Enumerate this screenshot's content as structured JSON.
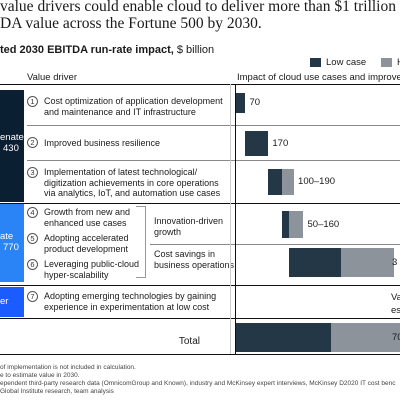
{
  "header": {
    "title_line1": "value drivers could enable cloud to deliver more than $1 trillion in 203",
    "title_line2": "DA value across the Fortune 500 by 2030.",
    "subtitle_bold": "ted 2030 EBITDA run-rate impact,",
    "subtitle_unit": " $ billion"
  },
  "legend": {
    "low_label": "Low case",
    "high_label": "H"
  },
  "colors": {
    "low": "#243746",
    "high": "#8c939a",
    "rejuvenate": "#0b1f33",
    "innovate": "#2a84f5",
    "pioneer": "#1a5cff"
  },
  "columns": {
    "driver": "Value driver",
    "impact": "Impact of cloud use cases and improveme"
  },
  "blocks": [
    {
      "line1": "enate",
      "line2": "430"
    },
    {
      "line1": "ate",
      "line2": "770"
    },
    {
      "line1": "er",
      "line2": ""
    }
  ],
  "drivers": [
    {
      "num": "1",
      "line1": "Cost optimization of application development",
      "line2": "and maintenance and IT infrastructure",
      "line3": ""
    },
    {
      "num": "2",
      "line1": "Improved business resilience",
      "line2": "",
      "line3": ""
    },
    {
      "num": "3",
      "line1": "Implementation of latest technological/",
      "line2": "digitization achievements in core operations",
      "line3": "via analytics, IoT, and automation use cases"
    },
    {
      "num": "4",
      "line1": "Growth from new and",
      "line2": "enhanced use cases",
      "line3": ""
    },
    {
      "num": "5",
      "line1": "Adopting accelerated",
      "line2": "product development",
      "line3": ""
    },
    {
      "num": "6",
      "line1": "Leveraging public-cloud",
      "line2": "hyper-scalability",
      "line3": ""
    },
    {
      "num": "7",
      "line1": "Adopting emerging technologies by gaining",
      "line2": "experience in experimentation at low cost",
      "line3": ""
    }
  ],
  "subgroups": [
    {
      "line1": "Innovation-driven",
      "line2": "growth"
    },
    {
      "line1": "Cost savings in",
      "line2": "business operations"
    }
  ],
  "total_label": "Total",
  "side_texts": {
    "row7_line1": "Va",
    "row7_line2": "es"
  },
  "footnotes": [
    "of implementation is not included in calculation.",
    "e to estimate value in 2030.",
    "ependent third-party research data (OmnicomGroup and Known), industry and McKinsey expert interviews, McKinsey D2020 IT cost benc",
    "Global Institute research, team analysis"
  ],
  "chart_data": {
    "type": "bar",
    "orientation": "horizontal",
    "stacked": "waterfall",
    "title": "value drivers could enable cloud to deliver more than $1 trillion in 203 / DA value across the Fortune 500 by 2030.",
    "unit": "$ billion",
    "categories": [
      "1",
      "2",
      "3",
      "4-5",
      "6",
      "7",
      "Total"
    ],
    "series": [
      {
        "name": "Low case",
        "values": [
          70,
          170,
          100,
          50,
          390,
          null,
          700
        ]
      },
      {
        "name": "H",
        "values": [
          70,
          170,
          190,
          160,
          390,
          null,
          700
        ]
      }
    ],
    "labels": [
      "70",
      "170",
      "100–190",
      "50–160",
      "3",
      "",
      "70"
    ]
  }
}
